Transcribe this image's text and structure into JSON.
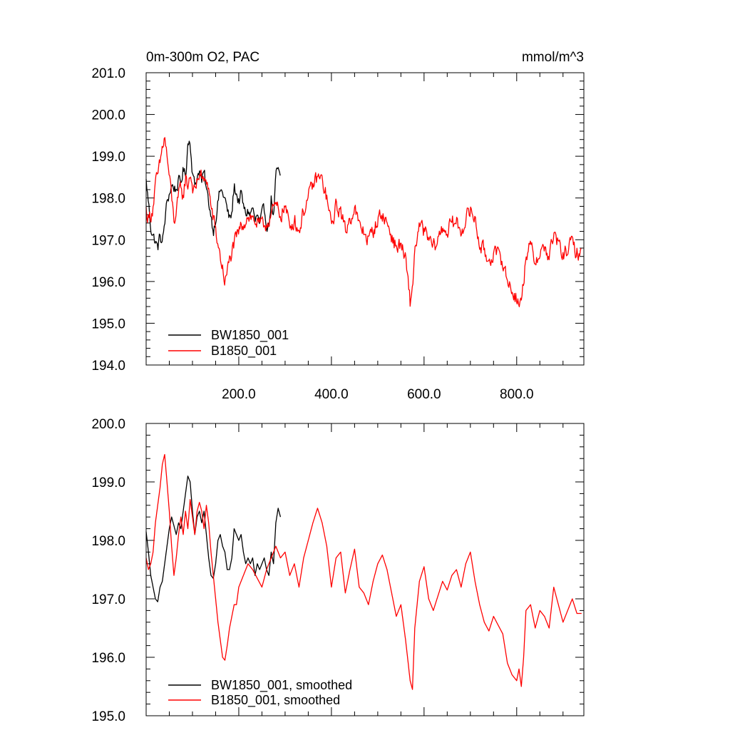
{
  "chart_data": [
    {
      "type": "line",
      "title_left": "0m-300m O2, PAC",
      "title_right": "mmol/m^3",
      "xlabel": "",
      "ylabel": "",
      "xlim": [
        0,
        945
      ],
      "ylim": [
        194.0,
        201.0
      ],
      "x_ticks": [
        "200.0",
        "400.0",
        "600.0",
        "800.0"
      ],
      "y_ticks": [
        "194.0",
        "195.0",
        "196.0",
        "197.0",
        "198.0",
        "199.0",
        "200.0",
        "201.0"
      ],
      "grid": false,
      "legend_position": "bottom-left",
      "series": [
        {
          "name": "BW1850_001",
          "color": "#000000",
          "x": [
            0,
            5,
            10,
            15,
            20,
            25,
            30,
            35,
            40,
            45,
            50,
            55,
            60,
            65,
            70,
            75,
            80,
            85,
            90,
            95,
            100,
            105,
            110,
            115,
            120,
            125,
            130,
            135,
            140,
            145,
            150,
            155,
            160,
            165,
            170,
            175,
            180,
            185,
            190,
            195,
            200,
            205,
            210,
            215,
            220,
            225,
            230,
            235,
            240,
            245,
            250,
            255,
            260,
            265,
            270,
            275,
            280,
            285,
            290
          ],
          "y": [
            198.4,
            197.9,
            197.3,
            197.1,
            196.95,
            196.8,
            197.1,
            196.9,
            197.4,
            197.9,
            198.1,
            198.3,
            198.25,
            198.2,
            198.4,
            198.35,
            198.7,
            198.5,
            199.3,
            199.4,
            198.6,
            198.3,
            198.5,
            198.7,
            198.4,
            198.6,
            198.2,
            197.9,
            197.6,
            197.2,
            197.5,
            197.9,
            198.2,
            198.1,
            198.0,
            197.7,
            197.5,
            197.6,
            198.3,
            198.1,
            197.9,
            198.1,
            197.8,
            197.6,
            197.7,
            197.6,
            197.8,
            197.4,
            197.6,
            197.3,
            197.6,
            197.7,
            197.4,
            197.3,
            198.0,
            197.5,
            198.5,
            198.7,
            198.4
          ],
          "noise": 0.22
        },
        {
          "name": "B1850_001",
          "color": "#ff0000",
          "x": [
            0,
            5,
            10,
            15,
            20,
            25,
            30,
            35,
            40,
            45,
            50,
            55,
            60,
            65,
            70,
            75,
            80,
            85,
            90,
            95,
            100,
            105,
            110,
            115,
            120,
            125,
            130,
            135,
            140,
            145,
            150,
            155,
            160,
            165,
            170,
            175,
            180,
            185,
            190,
            195,
            200,
            210,
            220,
            230,
            240,
            250,
            260,
            270,
            280,
            290,
            300,
            310,
            320,
            330,
            340,
            350,
            360,
            370,
            380,
            390,
            400,
            410,
            420,
            430,
            440,
            450,
            460,
            470,
            480,
            490,
            500,
            510,
            520,
            530,
            540,
            550,
            560,
            570,
            575,
            580,
            590,
            600,
            610,
            620,
            630,
            640,
            650,
            660,
            670,
            680,
            690,
            700,
            710,
            720,
            730,
            740,
            750,
            760,
            770,
            780,
            790,
            800,
            805,
            810,
            815,
            820,
            830,
            840,
            850,
            860,
            870,
            880,
            890,
            900,
            910,
            920,
            930,
            940
          ],
          "y": [
            197.7,
            197.5,
            197.6,
            197.8,
            198.3,
            198.5,
            198.8,
            199.2,
            199.45,
            199.0,
            198.5,
            198.0,
            197.5,
            197.6,
            198.0,
            198.3,
            198.0,
            198.5,
            198.3,
            198.6,
            198.3,
            198.1,
            198.4,
            198.6,
            198.5,
            198.3,
            198.5,
            198.2,
            197.8,
            197.5,
            197.2,
            196.9,
            196.6,
            196.3,
            196.0,
            196.2,
            196.5,
            196.7,
            196.9,
            197.0,
            197.2,
            197.4,
            197.6,
            197.5,
            197.4,
            197.3,
            197.4,
            197.6,
            197.8,
            197.6,
            197.8,
            197.3,
            197.5,
            197.2,
            197.7,
            198.0,
            198.3,
            198.5,
            198.4,
            198.0,
            197.3,
            197.8,
            197.7,
            197.2,
            197.5,
            197.8,
            197.3,
            197.2,
            197.0,
            197.2,
            197.5,
            197.6,
            197.4,
            197.1,
            196.8,
            196.9,
            196.5,
            195.5,
            195.8,
            196.8,
            197.3,
            197.2,
            197.0,
            196.8,
            197.0,
            197.3,
            197.2,
            197.4,
            197.4,
            197.2,
            197.5,
            197.7,
            197.5,
            196.9,
            196.7,
            196.5,
            196.7,
            196.6,
            196.5,
            196.0,
            195.8,
            195.6,
            195.5,
            195.5,
            196.0,
            196.7,
            196.8,
            196.5,
            196.7,
            196.8,
            196.6,
            197.1,
            196.9,
            196.6,
            196.8,
            196.9,
            196.7,
            196.7
          ],
          "noise": 0.3
        }
      ]
    },
    {
      "type": "line",
      "xlabel": "",
      "ylabel": "",
      "xlim": [
        0,
        945
      ],
      "ylim": [
        195.0,
        200.0
      ],
      "y_ticks": [
        "195.0",
        "196.0",
        "197.0",
        "198.0",
        "199.0",
        "200.0"
      ],
      "grid": false,
      "legend_position": "bottom-left",
      "series": [
        {
          "name": "BW1850_001, smoothed",
          "color": "#000000",
          "x": [
            0,
            5,
            10,
            15,
            20,
            25,
            30,
            35,
            40,
            45,
            50,
            55,
            60,
            65,
            70,
            75,
            80,
            85,
            90,
            95,
            100,
            105,
            110,
            115,
            120,
            125,
            130,
            135,
            140,
            145,
            150,
            155,
            160,
            165,
            170,
            175,
            180,
            185,
            190,
            195,
            200,
            205,
            210,
            215,
            220,
            225,
            230,
            235,
            240,
            245,
            250,
            255,
            260,
            265,
            270,
            275,
            280,
            285,
            290
          ],
          "y": [
            198.15,
            197.8,
            197.4,
            197.2,
            197.0,
            196.95,
            197.2,
            197.3,
            197.6,
            197.9,
            198.2,
            198.4,
            198.25,
            198.1,
            198.3,
            198.2,
            198.5,
            198.8,
            199.1,
            199.0,
            198.5,
            198.1,
            198.4,
            198.5,
            198.3,
            198.5,
            198.1,
            197.7,
            197.4,
            197.35,
            197.6,
            198.0,
            198.1,
            197.9,
            197.8,
            197.5,
            197.5,
            197.7,
            198.2,
            198.1,
            198.0,
            198.1,
            197.8,
            197.6,
            197.7,
            197.6,
            197.7,
            197.4,
            197.6,
            197.5,
            197.6,
            197.7,
            197.5,
            197.4,
            197.8,
            197.6,
            198.3,
            198.55,
            198.4
          ],
          "noise": 0
        },
        {
          "name": "B1850_001, smoothed",
          "color": "#ff0000",
          "x": [
            0,
            5,
            10,
            15,
            20,
            25,
            30,
            35,
            40,
            45,
            50,
            55,
            60,
            65,
            70,
            75,
            80,
            85,
            90,
            95,
            100,
            105,
            110,
            115,
            120,
            125,
            130,
            135,
            140,
            145,
            150,
            155,
            160,
            165,
            170,
            175,
            180,
            185,
            190,
            195,
            200,
            210,
            220,
            230,
            240,
            250,
            260,
            270,
            280,
            290,
            300,
            310,
            320,
            330,
            340,
            350,
            360,
            370,
            380,
            390,
            400,
            410,
            420,
            430,
            440,
            450,
            460,
            470,
            480,
            490,
            500,
            510,
            520,
            530,
            540,
            550,
            560,
            570,
            575,
            580,
            590,
            600,
            610,
            620,
            630,
            640,
            650,
            660,
            670,
            680,
            690,
            700,
            710,
            720,
            730,
            740,
            750,
            760,
            770,
            780,
            790,
            800,
            805,
            810,
            815,
            820,
            830,
            840,
            850,
            860,
            870,
            880,
            890,
            900,
            910,
            920,
            930,
            940
          ],
          "y": [
            197.7,
            197.5,
            197.6,
            197.8,
            198.3,
            198.6,
            198.9,
            199.3,
            199.47,
            199.0,
            198.5,
            197.9,
            197.4,
            197.7,
            198.1,
            198.4,
            198.1,
            198.5,
            198.2,
            198.7,
            198.4,
            198.1,
            198.5,
            198.65,
            198.5,
            198.2,
            198.6,
            198.3,
            197.8,
            197.4,
            197.0,
            196.6,
            196.3,
            196.0,
            195.95,
            196.2,
            196.5,
            196.7,
            196.9,
            196.9,
            197.2,
            197.4,
            197.6,
            197.5,
            197.35,
            197.2,
            197.5,
            197.7,
            197.9,
            197.7,
            197.8,
            197.4,
            197.6,
            197.2,
            197.7,
            198.0,
            198.3,
            198.55,
            198.3,
            197.9,
            197.2,
            197.7,
            197.8,
            197.1,
            197.5,
            197.85,
            197.2,
            197.1,
            196.9,
            197.3,
            197.6,
            197.75,
            197.5,
            197.1,
            196.7,
            196.9,
            196.3,
            195.6,
            195.45,
            196.5,
            197.3,
            197.55,
            197.0,
            196.8,
            197.05,
            197.3,
            197.15,
            197.4,
            197.5,
            197.2,
            197.6,
            197.8,
            197.3,
            196.9,
            196.6,
            196.45,
            196.7,
            196.55,
            196.4,
            195.9,
            195.7,
            195.6,
            195.8,
            195.5,
            196.0,
            196.8,
            196.9,
            196.5,
            196.8,
            196.7,
            196.5,
            197.2,
            196.9,
            196.6,
            196.8,
            197.0,
            196.75,
            196.75
          ],
          "noise": 0
        }
      ]
    }
  ]
}
